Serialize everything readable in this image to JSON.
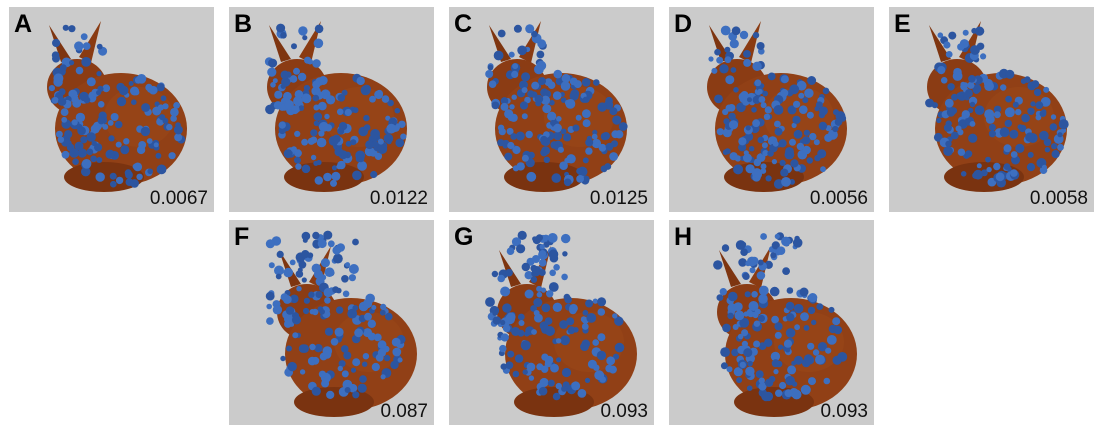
{
  "panels": [
    {
      "label": "A",
      "value": "0.0067"
    },
    {
      "label": "B",
      "value": "0.0122"
    },
    {
      "label": "C",
      "value": "0.0125"
    },
    {
      "label": "D",
      "value": "0.0056"
    },
    {
      "label": "E",
      "value": "0.0058"
    },
    {
      "label": "F",
      "value": "0.087"
    },
    {
      "label": "G",
      "value": "0.093"
    },
    {
      "label": "H",
      "value": "0.093"
    }
  ]
}
